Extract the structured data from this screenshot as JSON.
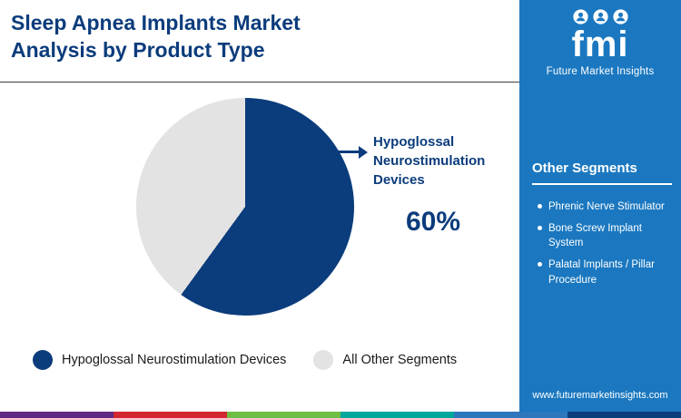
{
  "header": {
    "title": "Sleep Apnea Implants Market Analysis by Product Type"
  },
  "chart_data": {
    "type": "pie",
    "title": "Sleep Apnea Implants Market Analysis by Product Type",
    "categories": [
      "Hypoglossal Neurostimulation Devices",
      "All Other Segments"
    ],
    "values": [
      60,
      40
    ],
    "colors": [
      "#0b3c7c",
      "#e3e3e3"
    ],
    "callout": {
      "label": "Hypoglossal Neurostimulation Devices",
      "value": "60%"
    },
    "legend_position": "bottom"
  },
  "legend": {
    "items": [
      {
        "label": "Hypoglossal Neurostimulation Devices",
        "color": "#0b3c7c"
      },
      {
        "label": "All Other Segments",
        "color": "#e3e3e3"
      }
    ]
  },
  "sidebar": {
    "logo_text": "fmi",
    "brand_name": "Future Market Insights",
    "section_title": "Other Segments",
    "items": [
      "Phrenic Nerve Stimulator",
      "Bone Screw Implant System",
      "Palatal Implants / Pillar Procedure"
    ],
    "website": "www.futuremarketinsights.com"
  },
  "colors": {
    "navy": "#0b3c7c",
    "sidebar_blue": "#1b78c0",
    "light_gray": "#e3e3e3",
    "divider": "#3c3c3c"
  },
  "footer_stripe": [
    "#5f2a84",
    "#d22630",
    "#6fbe44",
    "#00a79d",
    "#2e77bc",
    "#0b3c7c"
  ]
}
